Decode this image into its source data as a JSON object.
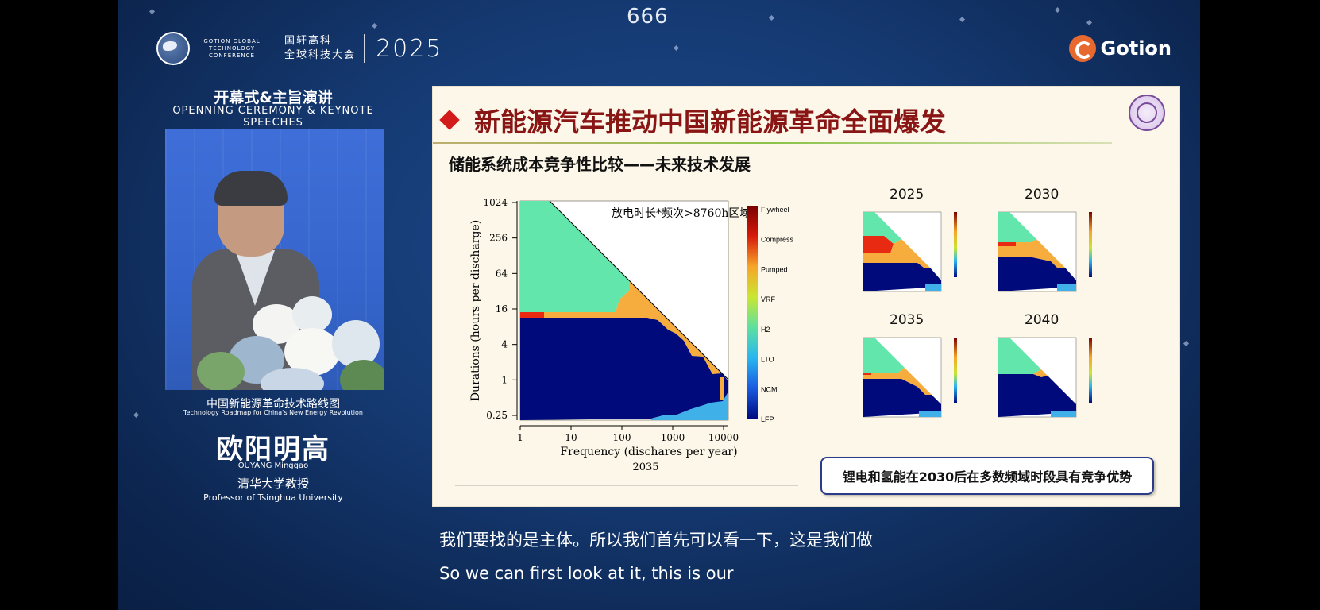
{
  "overlay": {
    "counter": "666"
  },
  "conference": {
    "logo_en": "GOTION GLOBAL TECHNOLOGY CONFERENCE",
    "logo_cn_line1": "国轩高科",
    "logo_cn_line2": "全球科技大会",
    "year": "2025",
    "brand": "Gotion"
  },
  "session": {
    "title_cn": "开幕式&主旨演讲",
    "title_en": "OPENNING CEREMONY & KEYNOTE SPEECHES"
  },
  "speaker": {
    "caption_cn": "中国新能源革命技术路线图",
    "caption_en": "Technology Roadmap for China's New Energy Revolution",
    "name_cn": "欧阳明高",
    "name_en": "OUYANG Minggao",
    "title_cn": "清华大学教授",
    "title_en": "Professor of Tsinghua University"
  },
  "slide": {
    "title": "新能源汽车推动中国新能源革命全面爆发",
    "subtitle": "储能系统成本竞争性比较——未来技术发展",
    "conclusion": "锂电和氢能在2030后在多数频域时段具有竞争优势",
    "mini_years": [
      "2025",
      "2030",
      "2035",
      "2040"
    ],
    "colors": {
      "accent_red": "#d41b1b",
      "title_red": "#8a1515",
      "box_border": "#2c3a8a"
    }
  },
  "chart_data": {
    "type": "heatmap",
    "annotation": "放电时长*频次>8760h区域",
    "xlabel": "Frequency (dischares per year)",
    "x_ticks": [
      "1",
      "10",
      "100",
      "1000",
      "10000"
    ],
    "ylabel": "Durations (hours per discharge)",
    "y_ticks": [
      "1024",
      "256",
      "64",
      "16",
      "4",
      "1",
      "0.25"
    ],
    "year": "2035",
    "x_scale": "log",
    "y_scale": "log",
    "legend": [
      "Flywheel",
      "Compress",
      "Pumped",
      "VRF",
      "H2",
      "LTO",
      "NCM",
      "LFP"
    ],
    "colormap": [
      "#7a0000",
      "#d61a0a",
      "#f7a528",
      "#c9e631",
      "#5de0a0",
      "#29b6f0",
      "#1a5be0",
      "#000a80"
    ],
    "regions": [
      {
        "technology": "H2",
        "color": "#63e6ac"
      },
      {
        "technology": "Compress",
        "color": "#e82a12"
      },
      {
        "technology": "Pumped",
        "color": "#f6ad3e"
      },
      {
        "technology": "LFP",
        "color": "#000a7a"
      },
      {
        "technology": "LTO",
        "color": "#3fb0e8"
      }
    ]
  },
  "subtitles": {
    "cn": "我们要找的是主体。所以我们首先可以看一下，这是我们做",
    "en": "So we can first look at it, this is our"
  }
}
